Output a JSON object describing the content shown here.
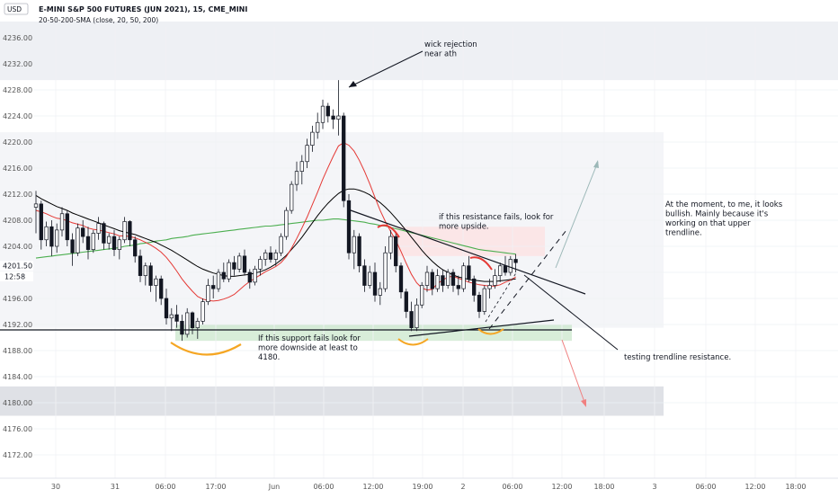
{
  "header": {
    "currency": "USD",
    "title": "E-MINI S&P 500 FUTURES (JUN 2021), 15, CME_MINI",
    "indicator": "20-50-200-SMA (close, 20, 50, 200)"
  },
  "colors": {
    "up": "#26a69a",
    "down": "#ef5350",
    "sma20": "#e53935",
    "sma50": "#000000",
    "sma200": "#4caf50",
    "zone_gray": "#e0e3eb",
    "zone_green": "#c8e6c9",
    "zone_red": "#fde0e0",
    "annot_orange": "#f5a623",
    "annot_red": "#e53935"
  },
  "annotations": {
    "wick": "wick rejection\nnear ath",
    "resistance": "if this resistance fails, look for\nmore upside.",
    "support": "If this support fails look for\nmore downside at least to\n4180.",
    "bullish": "At the moment, to me, it looks\nbullish. Mainly because it's\nworking on that upper\ntrendline.",
    "testing": "testing trendline resistance."
  },
  "chart_data": {
    "type": "candlestick",
    "title": "E-MINI S&P 500 FUTURES (JUN 2021), 15, CME_MINI",
    "ylim": [
      4168,
      4240
    ],
    "y_ticks": [
      "4236.00",
      "4232.00",
      "4228.00",
      "4224.00",
      "4220.00",
      "4216.00",
      "4212.00",
      "4208.00",
      "4204.00",
      "4196.00",
      "4192.00",
      "4188.00",
      "4184.00",
      "4180.00",
      "4176.00",
      "4172.00"
    ],
    "price_label": "4201.50",
    "countdown_label": "12:58",
    "last_price": 4201.5,
    "x_ticks": [
      "30",
      "31",
      "06:00",
      "17:00",
      "Jun",
      "06:00",
      "12:00",
      "19:00",
      "2",
      "06:00",
      "12:00",
      "18:00",
      "3",
      "06:00",
      "12:00",
      "18:00"
    ],
    "candles": [
      [
        4210,
        4212.5,
        4206,
        4210.5
      ],
      [
        4210.5,
        4211,
        4203.5,
        4205
      ],
      [
        4205,
        4207.8,
        4204,
        4207
      ],
      [
        4207,
        4208,
        4202.5,
        4204
      ],
      [
        4204,
        4207.5,
        4203,
        4206.5
      ],
      [
        4206.5,
        4210,
        4205.5,
        4209
      ],
      [
        4209,
        4209.5,
        4204,
        4205
      ],
      [
        4205,
        4206,
        4201,
        4203
      ],
      [
        4203,
        4207.5,
        4202.5,
        4206.8
      ],
      [
        4206.8,
        4208,
        4204.5,
        4205.5
      ],
      [
        4205.5,
        4207,
        4202,
        4203.5
      ],
      [
        4203.5,
        4206.5,
        4203,
        4206
      ],
      [
        4206,
        4208.5,
        4205,
        4207.5
      ],
      [
        4207.5,
        4207.8,
        4203.5,
        4204.5
      ],
      [
        4204.5,
        4206,
        4203.5,
        4205.5
      ],
      [
        4205.5,
        4206.5,
        4202.5,
        4203.5
      ],
      [
        4203.5,
        4205.5,
        4202,
        4205
      ],
      [
        4205,
        4208.5,
        4204.5,
        4207.8
      ],
      [
        4207.8,
        4208,
        4204,
        4205
      ],
      [
        4205,
        4205.5,
        4201.5,
        4202.5
      ],
      [
        4202.5,
        4203.5,
        4198.5,
        4199.5
      ],
      [
        4199.5,
        4201.5,
        4198,
        4201
      ],
      [
        4201,
        4201.5,
        4197,
        4198
      ],
      [
        4198,
        4199.5,
        4195.5,
        4199
      ],
      [
        4199,
        4199.5,
        4195,
        4196
      ],
      [
        4196,
        4197.5,
        4192,
        4193
      ],
      [
        4193,
        4194.5,
        4191,
        4193.5
      ],
      [
        4193.5,
        4195,
        4191.5,
        4192.5
      ],
      [
        4192.5,
        4193.5,
        4189.5,
        4190.5
      ],
      [
        4190.5,
        4194.5,
        4190,
        4193.8
      ],
      [
        4193.8,
        4194,
        4190.5,
        4191.5
      ],
      [
        4191.5,
        4193,
        4189.8,
        4192.5
      ],
      [
        4192.5,
        4196,
        4192,
        4195.5
      ],
      [
        4195.5,
        4199,
        4195,
        4198
      ],
      [
        4198,
        4199.5,
        4196,
        4197.5
      ],
      [
        4197.5,
        4200.5,
        4197,
        4200
      ],
      [
        4200,
        4201.5,
        4198.5,
        4199
      ],
      [
        4199,
        4202,
        4198.5,
        4201.5
      ],
      [
        4201.5,
        4202.5,
        4199.5,
        4200.5
      ],
      [
        4200.5,
        4203,
        4200,
        4202.5
      ],
      [
        4202.5,
        4203.5,
        4199.5,
        4200
      ],
      [
        4200,
        4200.5,
        4197.5,
        4198.5
      ],
      [
        4198.5,
        4201,
        4198,
        4200.5
      ],
      [
        4200.5,
        4202.5,
        4199.5,
        4202
      ],
      [
        4202,
        4203.5,
        4201,
        4203
      ],
      [
        4203,
        4204,
        4201.5,
        4202
      ],
      [
        4202,
        4203.5,
        4201,
        4203
      ],
      [
        4203,
        4206,
        4202.5,
        4205.5
      ],
      [
        4205.5,
        4210,
        4205,
        4209.5
      ],
      [
        4209.5,
        4214,
        4209,
        4213.5
      ],
      [
        4213.5,
        4217,
        4212.5,
        4215.5
      ],
      [
        4215.5,
        4218,
        4213.5,
        4217
      ],
      [
        4217,
        4220.5,
        4216,
        4219.5
      ],
      [
        4219.5,
        4222.5,
        4218.5,
        4221.5
      ],
      [
        4221.5,
        4224.5,
        4220.5,
        4223
      ],
      [
        4223,
        4226.5,
        4222,
        4225.5
      ],
      [
        4225.5,
        4226,
        4223,
        4224
      ],
      [
        4224,
        4225,
        4222,
        4223.5
      ],
      [
        4223.5,
        4229.5,
        4221,
        4224
      ],
      [
        4224,
        4224.5,
        4210,
        4211
      ],
      [
        4211,
        4212,
        4202,
        4203
      ],
      [
        4203,
        4206.5,
        4200.5,
        4205.5
      ],
      [
        4205.5,
        4206,
        4200,
        4201
      ],
      [
        4201,
        4202,
        4197,
        4198
      ],
      [
        4198,
        4201,
        4197.5,
        4200
      ],
      [
        4200,
        4201.5,
        4195.5,
        4196.5
      ],
      [
        4196.5,
        4198.5,
        4195,
        4197.5
      ],
      [
        4197.5,
        4204,
        4197,
        4203
      ],
      [
        4203,
        4206.5,
        4202,
        4205.5
      ],
      [
        4205.5,
        4206,
        4200,
        4201
      ],
      [
        4201,
        4201.5,
        4196,
        4197
      ],
      [
        4197,
        4197.5,
        4193,
        4194
      ],
      [
        4194,
        4195.5,
        4191,
        4191.5
      ],
      [
        4191.5,
        4196,
        4191,
        4195
      ],
      [
        4195,
        4198.5,
        4194.5,
        4198
      ],
      [
        4198,
        4201,
        4197,
        4200
      ],
      [
        4200,
        4200.5,
        4196.5,
        4197.5
      ],
      [
        4197.5,
        4200.5,
        4197,
        4199.5
      ],
      [
        4199.5,
        4200.5,
        4197,
        4198
      ],
      [
        4198,
        4200.5,
        4197.5,
        4200
      ],
      [
        4200,
        4200.5,
        4197,
        4198
      ],
      [
        4198,
        4199.5,
        4196.5,
        4197.5
      ],
      [
        4197.5,
        4201.5,
        4197,
        4201
      ],
      [
        4201,
        4202.5,
        4198.5,
        4199
      ],
      [
        4199,
        4199.5,
        4195.5,
        4196.5
      ],
      [
        4196.5,
        4197,
        4193,
        4194
      ],
      [
        4194,
        4198,
        4193.5,
        4197.5
      ],
      [
        4197.5,
        4199,
        4196,
        4198
      ],
      [
        4198,
        4200.5,
        4197.5,
        4199.5
      ],
      [
        4199.5,
        4201.5,
        4198.5,
        4201
      ],
      [
        4201,
        4202.5,
        4199.5,
        4200
      ],
      [
        4200,
        4202.5,
        4199.5,
        4202
      ],
      [
        4202,
        4202.8,
        4200,
        4201.5
      ]
    ],
    "sma20": [
      4209.5,
      4209.3,
      4209,
      4208.6,
      4208.3,
      4208.2,
      4207.9,
      4207.6,
      4207.4,
      4207.2,
      4206.8,
      4206.6,
      4206.5,
      4206.3,
      4206.1,
      4205.9,
      4205.6,
      4205.6,
      4205.5,
      4205.3,
      4205,
      4204.6,
      4204.2,
      4203.7,
      4203.1,
      4202.3,
      4201.3,
      4200.2,
      4199,
      4198,
      4197.1,
      4196.3,
      4195.9,
      4195.7,
      4195.6,
      4195.7,
      4195.9,
      4196.2,
      4196.6,
      4197.3,
      4198,
      4198.6,
      4199.1,
      4199.6,
      4200.1,
      4200.5,
      4200.9,
      4201.5,
      4202.4,
      4203.7,
      4205.2,
      4206.8,
      4208.5,
      4210.4,
      4212.3,
      4214.3,
      4216.1,
      4217.8,
      4219.4,
      4219.9,
      4219.5,
      4218.6,
      4217.2,
      4215.5,
      4213.6,
      4211.5,
      4209.5,
      4207.8,
      4206.3,
      4204.9,
      4203.2,
      4201.4,
      4199.7,
      4198.4,
      4197.6,
      4197.3,
      4197.4,
      4198.3,
      4198.8,
      4199.3,
      4199.4,
      4199.1,
      4198.8,
      4198.5,
      4198.3,
      4198.1,
      4198,
      4197.9,
      4197.9,
      4198.1,
      4198.5,
      4198.8,
      4199.3
    ],
    "sma50": [
      4211.8,
      4211.3,
      4210.9,
      4210.5,
      4210.1,
      4209.8,
      4209.5,
      4209.1,
      4208.8,
      4208.5,
      4208.2,
      4207.9,
      4207.6,
      4207.3,
      4207,
      4206.7,
      4206.4,
      4206.2,
      4206,
      4205.8,
      4205.5,
      4205.2,
      4204.9,
      4204.6,
      4204.2,
      4203.8,
      4203.4,
      4202.9,
      4202.4,
      4201.9,
      4201.4,
      4200.9,
      4200.5,
      4200.2,
      4199.9,
      4199.7,
      4199.5,
      4199.4,
      4199.4,
      4199.5,
      4199.6,
      4199.7,
      4199.9,
      4200.1,
      4200.4,
      4200.8,
      4201.3,
      4201.9,
      4202.6,
      4203.5,
      4204.4,
      4205.4,
      4206.5,
      4207.6,
      4208.7,
      4209.7,
      4210.6,
      4211.4,
      4212.1,
      4212.6,
      4212.8,
      4212.8,
      4212.6,
      4212.3,
      4211.9,
      4211.3,
      4210.7,
      4210,
      4209.2,
      4208.3,
      4207.4,
      4206.4,
      4205.4,
      4204.4,
      4203.4,
      4202.5,
      4201.7,
      4201,
      4200.4,
      4200,
      4199.6,
      4199.3,
      4199.1,
      4198.9,
      4198.8,
      4198.7,
      4198.6,
      4198.6,
      4198.6,
      4198.7,
      4198.8,
      4198.9,
      4199
    ],
    "sma200": [
      4202.2,
      4202.3,
      4202.4,
      4202.5,
      4202.6,
      4202.7,
      4202.8,
      4202.9,
      4203,
      4203.1,
      4203.2,
      4203.3,
      4203.4,
      4203.5,
      4203.6,
      4203.7,
      4203.8,
      4204,
      4204.1,
      4204.2,
      4204.4,
      4204.5,
      4204.6,
      4204.8,
      4204.9,
      4205,
      4205.2,
      4205.3,
      4205.4,
      4205.5,
      4205.7,
      4205.8,
      4205.9,
      4206,
      4206.1,
      4206.2,
      4206.3,
      4206.4,
      4206.5,
      4206.6,
      4206.7,
      4206.8,
      4206.9,
      4207,
      4207.1,
      4207.1,
      4207.2,
      4207.3,
      4207.4,
      4207.5,
      4207.6,
      4207.7,
      4207.8,
      4207.9,
      4208,
      4208,
      4208.1,
      4208.2,
      4208.2,
      4208.1,
      4208,
      4207.9,
      4207.8,
      4207.7,
      4207.5,
      4207.4,
      4207.2,
      4207.1,
      4206.9,
      4206.7,
      4206.5,
      4206.3,
      4206.1,
      4205.9,
      4205.7,
      4205.5,
      4205.3,
      4205.1,
      4204.9,
      4204.7,
      4204.5,
      4204.3,
      4204.1,
      4203.9,
      4203.7,
      4203.5,
      4203.4,
      4203.3,
      4203.2,
      4203.1,
      4203,
      4202.9,
      4202.8
    ]
  }
}
